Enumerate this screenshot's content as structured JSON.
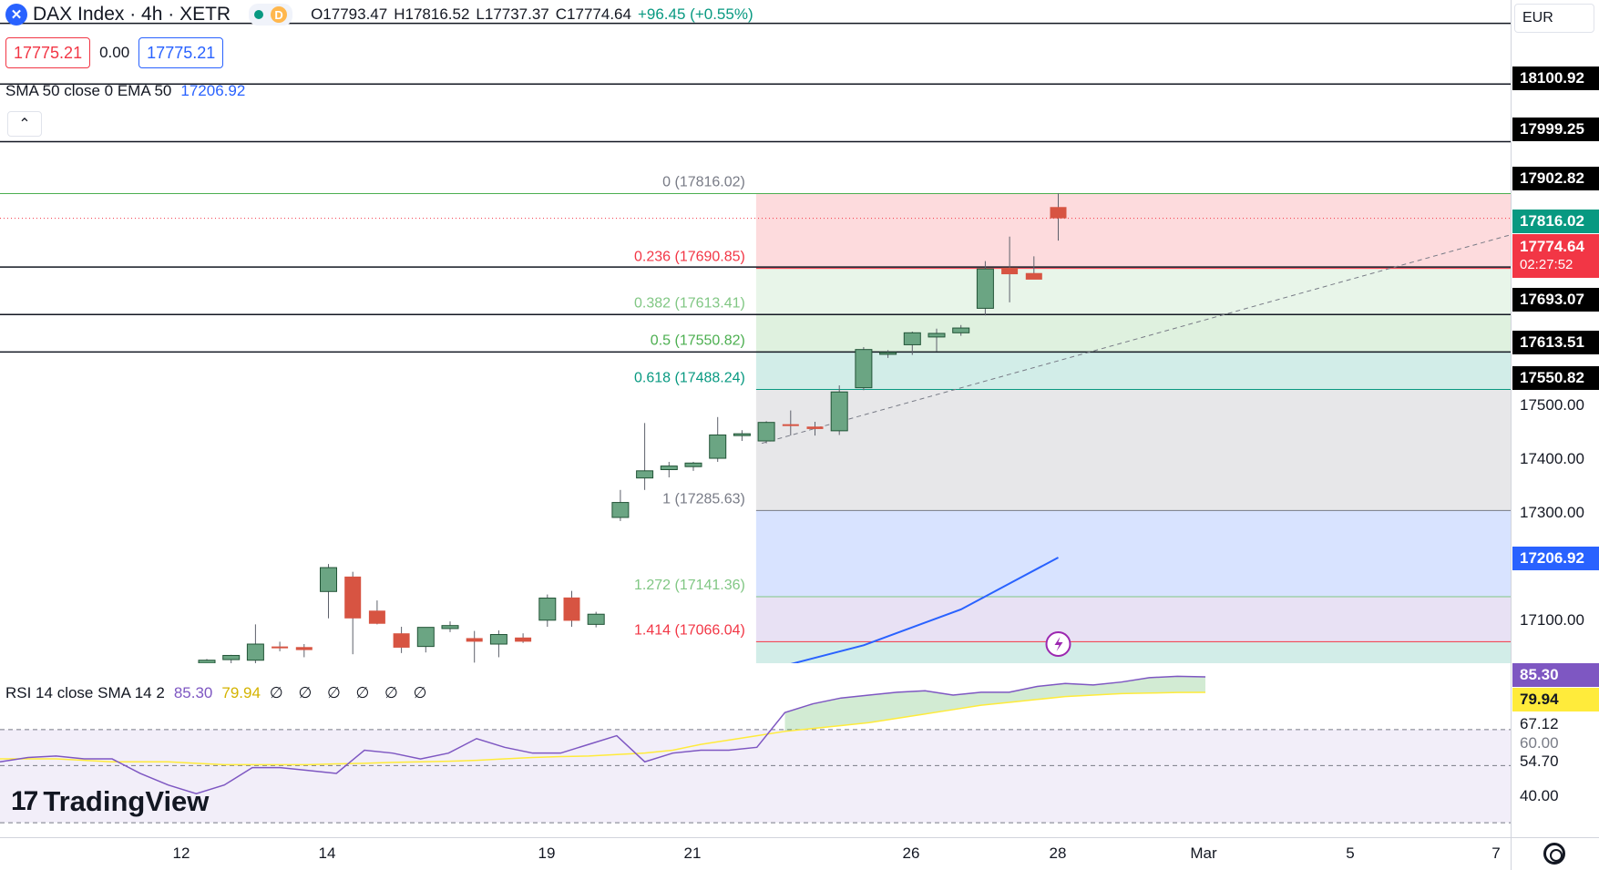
{
  "header": {
    "symbol_icon": "x-circle-icon",
    "title": "DAX Index · 4h · XETR",
    "status_letter": "D",
    "open": "O17793.47",
    "high": "H17816.52",
    "low": "L17737.37",
    "close": "C17774.64",
    "change": "+96.45 (+0.55%)",
    "sell_price": "17775.21",
    "spread": "0.00",
    "buy_price": "17775.21",
    "ma_label": "SMA 50 close 0 EMA 50",
    "ma_value": "17206.92",
    "collapse_icon": "chevron-up-icon"
  },
  "rsi_legend": {
    "label": "RSI 14 close SMA 14 2",
    "rsi_value": "85.30",
    "sma_value": "79.94",
    "extra": "∅ ∅ ∅ ∅ ∅ ∅"
  },
  "currency": "EUR",
  "price_axis": {
    "ticks": [
      "17500.00",
      "17400.00",
      "17300.00",
      "17100.00"
    ],
    "labels": {
      "l18100": "18100.92",
      "l17999": "17999.25",
      "l17902": "17902.82",
      "l17816": "17816.02",
      "last": "17774.64",
      "countdown": "02:27:52",
      "l17693": "17693.07",
      "l17613": "17613.51",
      "l17550": "17550.82",
      "ema": "17206.92"
    },
    "rsi_ticks": [
      "67.12",
      "60.00",
      "54.70",
      "40.00"
    ],
    "rsi_labels": {
      "rsi": "85.30",
      "sma": "79.94"
    }
  },
  "time_axis": [
    "12",
    "14",
    "19",
    "21",
    "26",
    "28",
    "Mar",
    "5",
    "7"
  ],
  "fib_labels": [
    {
      "text": "0 (17816.02)"
    },
    {
      "text": "0.236 (17690.85)"
    },
    {
      "text": "0.382 (17613.41)"
    },
    {
      "text": "0.5 (17550.82)"
    },
    {
      "text": "0.618 (17488.24)"
    },
    {
      "text": "1 (17285.63)"
    },
    {
      "text": "1.272 (17141.36)"
    },
    {
      "text": "1.414 (17066.04)"
    }
  ],
  "branding": {
    "mark": "17",
    "word": "TradingView",
    "settings_icon": "gear-icon",
    "alert_icon": "lightning-icon"
  },
  "chart_data": [
    {
      "type": "candlestick",
      "title": "DAX Index · 4h · XETR",
      "ylim": [
        17030,
        18140
      ],
      "x_ticks": [
        "12",
        "14",
        "19",
        "21",
        "26",
        "28",
        "Mar",
        "5",
        "7"
      ],
      "candles": [
        {
          "o": 17030,
          "h": 17037,
          "l": 17020,
          "c": 17035
        },
        {
          "o": 17036,
          "h": 17044,
          "l": 17030,
          "c": 17043
        },
        {
          "o": 17035,
          "h": 17095,
          "l": 17028,
          "c": 17062
        },
        {
          "o": 17058,
          "h": 17066,
          "l": 17050,
          "c": 17055
        },
        {
          "o": 17057,
          "h": 17062,
          "l": 17040,
          "c": 17052
        },
        {
          "o": 17150,
          "h": 17196,
          "l": 17105,
          "c": 17190
        },
        {
          "o": 17175,
          "h": 17183,
          "l": 17045,
          "c": 17105
        },
        {
          "o": 17118,
          "h": 17135,
          "l": 17095,
          "c": 17096
        },
        {
          "o": 17080,
          "h": 17091,
          "l": 17047,
          "c": 17056
        },
        {
          "o": 17058,
          "h": 17090,
          "l": 17048,
          "c": 17090
        },
        {
          "o": 17088,
          "h": 17100,
          "l": 17082,
          "c": 17093
        },
        {
          "o": 17072,
          "h": 17084,
          "l": 17031,
          "c": 17066
        },
        {
          "o": 17062,
          "h": 17085,
          "l": 17040,
          "c": 17078
        },
        {
          "o": 17073,
          "h": 17080,
          "l": 17064,
          "c": 17066
        },
        {
          "o": 17102,
          "h": 17145,
          "l": 17091,
          "c": 17139
        },
        {
          "o": 17140,
          "h": 17151,
          "l": 17091,
          "c": 17101
        },
        {
          "o": 17095,
          "h": 17116,
          "l": 17090,
          "c": 17112
        },
        {
          "o": 17274,
          "h": 17320,
          "l": 17268,
          "c": 17299
        },
        {
          "o": 17340,
          "h": 17432,
          "l": 17320,
          "c": 17352
        },
        {
          "o": 17354,
          "h": 17367,
          "l": 17341,
          "c": 17360
        },
        {
          "o": 17359,
          "h": 17367,
          "l": 17352,
          "c": 17365
        },
        {
          "o": 17373,
          "h": 17442,
          "l": 17367,
          "c": 17412
        },
        {
          "o": 17412,
          "h": 17420,
          "l": 17402,
          "c": 17414
        },
        {
          "o": 17402,
          "h": 17435,
          "l": 17398,
          "c": 17433
        },
        {
          "o": 17430,
          "h": 17453,
          "l": 17411,
          "c": 17428
        },
        {
          "o": 17426,
          "h": 17434,
          "l": 17411,
          "c": 17422
        },
        {
          "o": 17419,
          "h": 17495,
          "l": 17412,
          "c": 17484
        },
        {
          "o": 17491,
          "h": 17559,
          "l": 17487,
          "c": 17555
        },
        {
          "o": 17548,
          "h": 17554,
          "l": 17541,
          "c": 17550
        },
        {
          "o": 17563,
          "h": 17585,
          "l": 17546,
          "c": 17583
        },
        {
          "o": 17576,
          "h": 17590,
          "l": 17552,
          "c": 17582
        },
        {
          "o": 17583,
          "h": 17596,
          "l": 17578,
          "c": 17591
        },
        {
          "o": 17624,
          "h": 17703,
          "l": 17612,
          "c": 17690
        },
        {
          "o": 17692,
          "h": 17744,
          "l": 17634,
          "c": 17681
        },
        {
          "o": 17683,
          "h": 17711,
          "l": 17673,
          "c": 17672
        },
        {
          "o": 17793.47,
          "h": 17816.52,
          "l": 17737.37,
          "c": 17774.64
        }
      ],
      "ema50": [
        {
          "x": 23,
          "y": 17018
        },
        {
          "x": 27,
          "y": 17060
        },
        {
          "x": 31,
          "y": 17120
        },
        {
          "x": 35,
          "y": 17206.92
        }
      ],
      "horizontal_levels": [
        18100.92,
        17999.25,
        17902.82,
        17816.02,
        17693.07,
        17613.51,
        17550.82
      ],
      "fibonacci": {
        "start_index": 23,
        "levels": [
          {
            "ratio": "0",
            "price": 17816.02,
            "color": "#787b86"
          },
          {
            "ratio": "0.236",
            "price": 17690.85,
            "color": "#f23645"
          },
          {
            "ratio": "0.382",
            "price": 17613.41,
            "color": "#81c784"
          },
          {
            "ratio": "0.5",
            "price": 17550.82,
            "color": "#4caf50"
          },
          {
            "ratio": "0.618",
            "price": 17488.24,
            "color": "#089981"
          },
          {
            "ratio": "1",
            "price": 17285.63,
            "color": "#787b86"
          },
          {
            "ratio": "1.272",
            "price": 17141.36,
            "color": "#81c784"
          },
          {
            "ratio": "1.414",
            "price": 17066.04,
            "color": "#f23645"
          }
        ]
      }
    },
    {
      "type": "line",
      "title": "RSI 14 close SMA 14 2",
      "ylim": [
        30,
        90
      ],
      "y_ticks": [
        67.12,
        60.0,
        54.7,
        40.0
      ],
      "series": [
        {
          "name": "RSI",
          "color": "#7e57c2",
          "values": [
            56,
            57.5,
            58,
            57,
            57,
            52,
            48,
            45,
            48,
            54,
            54,
            53,
            52,
            60,
            59,
            57,
            59,
            64,
            61,
            59,
            59,
            62,
            65,
            56,
            59,
            60,
            60,
            61,
            73,
            76,
            78,
            79,
            80,
            80.5,
            79,
            80,
            80,
            82,
            83,
            82.5,
            83.5,
            85,
            85.5,
            85.3
          ]
        },
        {
          "name": "SMA",
          "color": "#ffeb3b",
          "values": [
            57,
            57,
            57,
            56.5,
            56,
            56,
            56,
            55.5,
            55,
            55,
            55,
            55,
            55.3,
            55.5,
            55.8,
            56,
            56.2,
            56.5,
            57,
            57.5,
            57.8,
            58,
            58.5,
            59,
            60,
            62,
            63.5,
            65,
            66.5,
            67.5,
            68.5,
            69.5,
            71,
            72.5,
            74,
            75.5,
            76.5,
            77.5,
            78.5,
            79,
            79.5,
            79.7,
            79.9,
            79.94
          ]
        }
      ]
    }
  ]
}
